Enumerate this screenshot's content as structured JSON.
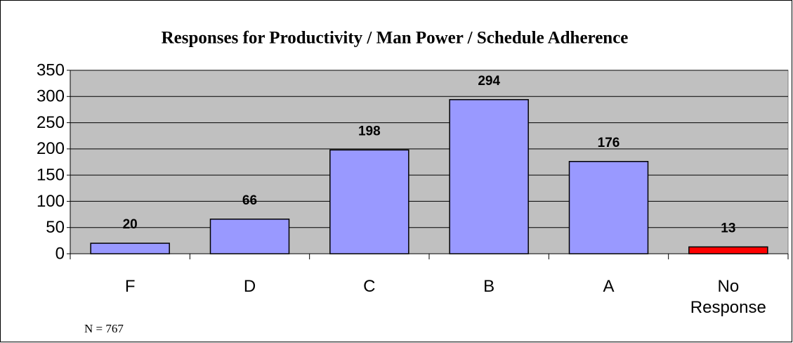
{
  "chart_data": {
    "type": "bar",
    "title": "Responses for Productivity / Man Power / Schedule Adherence",
    "categories": [
      "F",
      "D",
      "C",
      "B",
      "A",
      "No Response"
    ],
    "values": [
      20,
      66,
      198,
      294,
      176,
      13
    ],
    "colors": [
      "#9999ff",
      "#9999ff",
      "#9999ff",
      "#9999ff",
      "#9999ff",
      "#ff0000"
    ],
    "ylim": [
      0,
      350
    ],
    "yticks": [
      0,
      50,
      100,
      150,
      200,
      250,
      300,
      350
    ],
    "grid": true,
    "annotation": "N = 767"
  }
}
